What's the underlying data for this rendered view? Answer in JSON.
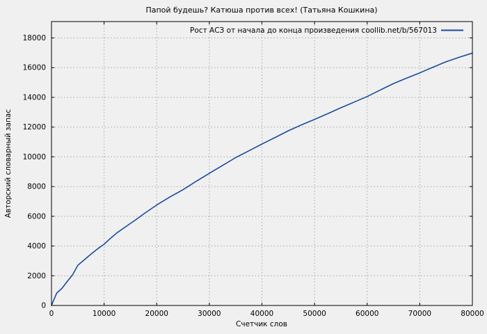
{
  "page": {
    "background_color": "#f0f0f0"
  },
  "colors": {
    "background": "#f0f0f0",
    "frame": "#000000",
    "grid": "#a6a6a6",
    "text": "#000000",
    "series_line": "#1a4a9e"
  },
  "chart_data": {
    "type": "line",
    "title": "Папой будешь? Катюша против всех! (Татьяна Кошкина)",
    "xlabel": "Счетчик слов",
    "ylabel": "Авторский словарный запас",
    "legend": {
      "label": "Рост АСЗ от начала до конца произведения coollib.net/b/567013",
      "position": "top-right-inside"
    },
    "grid": true,
    "grid_style": "dotted",
    "xlim": [
      0,
      80000
    ],
    "ylim": [
      0,
      19100
    ],
    "xticks": [
      0,
      10000,
      20000,
      30000,
      40000,
      50000,
      60000,
      70000,
      80000
    ],
    "yticks": [
      0,
      2000,
      4000,
      6000,
      8000,
      10000,
      12000,
      14000,
      16000,
      18000
    ],
    "series": [
      {
        "name": "Рост АСЗ от начала до конца произведения coollib.net/b/567013",
        "color": "#1a4a9e",
        "points": [
          [
            0,
            0
          ],
          [
            500,
            430
          ],
          [
            1000,
            840
          ],
          [
            2000,
            1150
          ],
          [
            3000,
            1620
          ],
          [
            4000,
            2060
          ],
          [
            5000,
            2700
          ],
          [
            6000,
            3000
          ],
          [
            7000,
            3300
          ],
          [
            8000,
            3590
          ],
          [
            9000,
            3870
          ],
          [
            10000,
            4120
          ],
          [
            11000,
            4450
          ],
          [
            12500,
            4900
          ],
          [
            15000,
            5520
          ],
          [
            16000,
            5760
          ],
          [
            17500,
            6150
          ],
          [
            20000,
            6760
          ],
          [
            22500,
            7300
          ],
          [
            25000,
            7790
          ],
          [
            27500,
            8350
          ],
          [
            30000,
            8890
          ],
          [
            32500,
            9420
          ],
          [
            35000,
            9950
          ],
          [
            37500,
            10400
          ],
          [
            40000,
            10860
          ],
          [
            42500,
            11300
          ],
          [
            45000,
            11750
          ],
          [
            47500,
            12150
          ],
          [
            50000,
            12520
          ],
          [
            52500,
            12900
          ],
          [
            55000,
            13300
          ],
          [
            57500,
            13680
          ],
          [
            60000,
            14060
          ],
          [
            62500,
            14500
          ],
          [
            65000,
            14930
          ],
          [
            67500,
            15300
          ],
          [
            70000,
            15650
          ],
          [
            72500,
            16030
          ],
          [
            75000,
            16400
          ],
          [
            77500,
            16700
          ],
          [
            80000,
            16980
          ]
        ]
      }
    ]
  }
}
